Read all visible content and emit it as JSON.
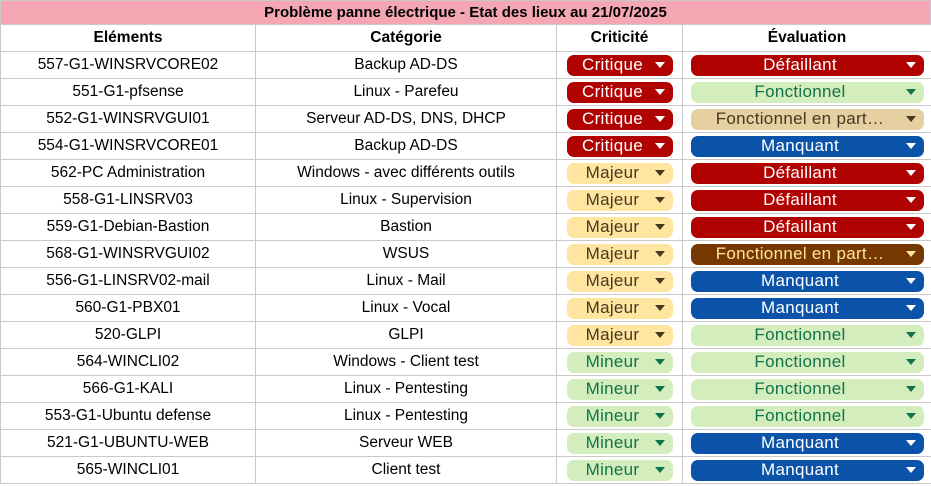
{
  "title": "Problème panne électrique - Etat des lieux au 21/07/2025",
  "columns": [
    "Eléments",
    "Catégorie",
    "Criticité",
    "Évaluation"
  ],
  "colors": {
    "title_bg": "#f4a6b3",
    "critique": "#b10202",
    "majeur": "#ffe5a0",
    "mineur": "#d4edbc",
    "defaillant": "#b10202",
    "fonctionnel": "#d4edbc",
    "fonctionnel_partiel_light": "#e6cfa0",
    "fonctionnel_partiel_dark": "#753800",
    "manquant": "#0a53a8"
  },
  "rows": [
    {
      "element": "557-G1-WINSRVCORE02",
      "categorie": "Backup AD-DS",
      "criticite": "Critique",
      "evaluation": "Défaillant",
      "eval_style": "Defaillant"
    },
    {
      "element": "551-G1-pfsense",
      "categorie": "Linux - Parefeu",
      "criticite": "Critique",
      "evaluation": "Fonctionnel",
      "eval_style": "Fonctionnel"
    },
    {
      "element": "552-G1-WINSRVGUI01",
      "categorie": "Serveur AD-DS, DNS, DHCP",
      "criticite": "Critique",
      "evaluation": "Fonctionnel en part…",
      "eval_style": "Partiel"
    },
    {
      "element": "554-G1-WINSRVCORE01",
      "categorie": "Backup AD-DS",
      "criticite": "Critique",
      "evaluation": "Manquant",
      "eval_style": "Manquant"
    },
    {
      "element": "562-PC Administration",
      "categorie": "Windows - avec différents outils",
      "criticite": "Majeur",
      "evaluation": "Défaillant",
      "eval_style": "Defaillant"
    },
    {
      "element": "558-G1-LINSRV03",
      "categorie": "Linux - Supervision",
      "criticite": "Majeur",
      "evaluation": "Défaillant",
      "eval_style": "Defaillant"
    },
    {
      "element": "559-G1-Debian-Bastion",
      "categorie": "Bastion",
      "criticite": "Majeur",
      "evaluation": "Défaillant",
      "eval_style": "Defaillant"
    },
    {
      "element": "568-G1-WINSRVGUI02",
      "categorie": "WSUS",
      "criticite": "Majeur",
      "evaluation": "Fonctionnel en part…",
      "eval_style": "PartielDark"
    },
    {
      "element": "556-G1-LINSRV02-mail",
      "categorie": "Linux - Mail",
      "criticite": "Majeur",
      "evaluation": "Manquant",
      "eval_style": "Manquant"
    },
    {
      "element": "560-G1-PBX01",
      "categorie": "Linux - Vocal",
      "criticite": "Majeur",
      "evaluation": "Manquant",
      "eval_style": "Manquant"
    },
    {
      "element": "520-GLPI",
      "categorie": "GLPI",
      "criticite": "Majeur",
      "evaluation": "Fonctionnel",
      "eval_style": "Fonctionnel"
    },
    {
      "element": "564-WINCLI02",
      "categorie": "Windows - Client test",
      "criticite": "Mineur",
      "evaluation": "Fonctionnel",
      "eval_style": "Fonctionnel"
    },
    {
      "element": "566-G1-KALI",
      "categorie": "Linux - Pentesting",
      "criticite": "Mineur",
      "evaluation": "Fonctionnel",
      "eval_style": "Fonctionnel"
    },
    {
      "element": "553-G1-Ubuntu defense",
      "categorie": "Linux - Pentesting",
      "criticite": "Mineur",
      "evaluation": "Fonctionnel",
      "eval_style": "Fonctionnel"
    },
    {
      "element": "521-G1-UBUNTU-WEB",
      "categorie": "Serveur WEB",
      "criticite": "Mineur",
      "evaluation": "Manquant",
      "eval_style": "Manquant"
    },
    {
      "element": "565-WINCLI01",
      "categorie": "Client test",
      "criticite": "Mineur",
      "evaluation": "Manquant",
      "eval_style": "Manquant"
    }
  ]
}
